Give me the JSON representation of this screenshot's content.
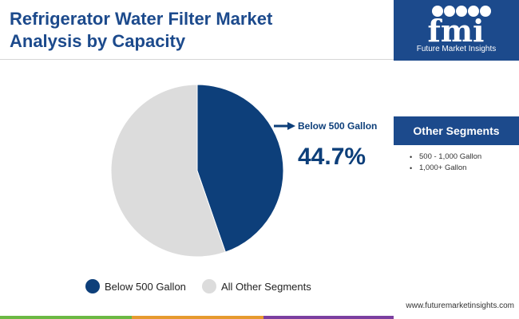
{
  "header": {
    "title_line1": "Refrigerator Water Filter Market",
    "title_line2": "Analysis by Capacity"
  },
  "logo": {
    "icon": "fmi-logo",
    "text": "Future Market Insights"
  },
  "sidebar": {
    "other_title": "Other Segments",
    "items": [
      "500 - 1,000 Gallon",
      "1,000+ Gallon"
    ]
  },
  "website": "www.futuremarketinsights.com",
  "colors": {
    "brand": "#1c4a8c",
    "primary_slice": "#0d3f7a",
    "other_slice": "#dcdcdc"
  },
  "chart_data": {
    "type": "pie",
    "title": "Refrigerator Water Filter Market Analysis by Capacity",
    "categories": [
      "Below 500 Gallon",
      "All Other Segments"
    ],
    "values": [
      44.7,
      55.3
    ],
    "colors": [
      "#0d3f7a",
      "#dcdcdc"
    ],
    "highlight": {
      "label": "Below 500 Gallon",
      "value_text": "44.7%"
    },
    "legend": {
      "position": "bottom",
      "entries": [
        "Below 500 Gallon",
        "All Other Segments"
      ]
    }
  }
}
